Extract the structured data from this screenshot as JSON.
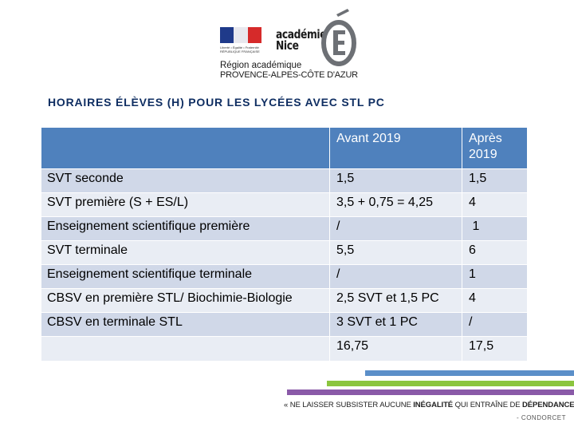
{
  "logo": {
    "marianne_caption": "Liberté • Égalité • Fraternité RÉPUBLIQUE FRANÇAISE",
    "academie_line1": "académie",
    "academie_line2": "Nice",
    "region_line1": "Région académique",
    "region_line2": "PROVENCE-ALPES-CÔTE D'AZUR",
    "colors": {
      "blue": "#1f3a8a",
      "red": "#d62a2a",
      "e_grey": "#6d7075"
    }
  },
  "title": "HORAIRES ÉLÈVES (H) POUR LES LYCÉES AVEC STL PC",
  "table": {
    "headers": [
      "",
      "Avant 2019",
      "Après 2019"
    ],
    "rows": [
      [
        "SVT seconde",
        "1,5",
        "1,5"
      ],
      [
        "SVT première (S + ES/L)",
        "3,5 + 0,75 = 4,25",
        "4"
      ],
      [
        "Enseignement scientifique première",
        "/",
        " 1"
      ],
      [
        "SVT terminale",
        "5,5",
        "6"
      ],
      [
        "Enseignement scientifique terminale",
        "/",
        "1"
      ],
      [
        "CBSV en première STL/ Biochimie-Biologie",
        "2,5 SVT et 1,5 PC",
        "4"
      ],
      [
        "CBSV en terminale STL",
        "3 SVT et 1 PC",
        "/"
      ],
      [
        "",
        "16,75",
        "17,5"
      ]
    ],
    "colors": {
      "header": "#4f81bd",
      "row_odd": "#d0d8e8",
      "row_even": "#e9edf4"
    }
  },
  "footer": {
    "slogan_part1": "« NE LAISSER SUBSISTER AUCUNE ",
    "slogan_bold1": "INÉGALITÉ",
    "slogan_part2": " QUI ENTRAÎNE DE ",
    "slogan_bold2": "DÉPENDANCE",
    "slogan_part3": " »",
    "author": "- CONDORCET",
    "bar_colors": [
      "#5b8fc9",
      "#8bc53f",
      "#8a5aa8"
    ]
  }
}
